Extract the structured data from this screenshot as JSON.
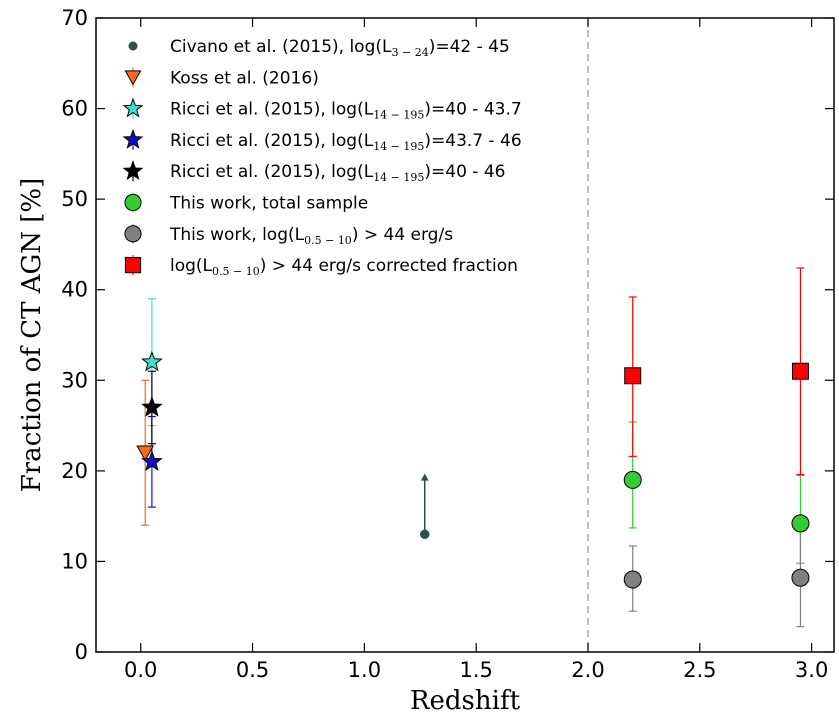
{
  "chart_data": {
    "type": "scatter",
    "title": "",
    "xlabel": "Redshift",
    "ylabel": "Fraction of CT AGN [%]",
    "xlim": [
      -0.2,
      3.1
    ],
    "ylim": [
      0,
      70
    ],
    "xticks": [
      "0.0",
      "0.5",
      "1.0",
      "1.5",
      "2.0",
      "2.5",
      "3.0"
    ],
    "yticks": [
      "0",
      "10",
      "20",
      "30",
      "40",
      "50",
      "60",
      "70"
    ],
    "grid": false,
    "legend_position": "top-left",
    "reference_line": {
      "x": 2.0,
      "style": "dashed",
      "color": "#aaaaaa"
    },
    "series": [
      {
        "name": "Civano et al. (2015), log(L3-24)=42 - 45",
        "label_prefix": "Civano et al. (2015), log(L",
        "label_sub": "3 − 24",
        "label_suffix": ")=42 - 45",
        "marker": "circle-small",
        "color": "#2f4f4f",
        "points": [
          {
            "x": 1.27,
            "y": 13,
            "lower_limit": true,
            "arrow_to": 19.7
          }
        ]
      },
      {
        "name": "Koss et al. (2016)",
        "label_prefix": "Koss et al. (2016)",
        "label_sub": "",
        "label_suffix": "",
        "marker": "triangle-down",
        "color": "#ff6a1a",
        "points": [
          {
            "x": 0.02,
            "y": 22,
            "yerr_low": 14,
            "yerr_high": 30
          }
        ]
      },
      {
        "name": "Ricci et al. (2015), log(L14-195)=40 - 43.7",
        "label_prefix": "Ricci et al. (2015), log(L",
        "label_sub": "14 − 195",
        "label_suffix": ")=40 - 43.7",
        "marker": "star",
        "color": "#40e0d0",
        "points": [
          {
            "x": 0.05,
            "y": 32,
            "yerr_low": 25,
            "yerr_high": 39
          }
        ]
      },
      {
        "name": "Ricci et al. (2015), log(L14-195)=43.7 - 46",
        "label_prefix": "Ricci et al. (2015), log(L",
        "label_sub": "14 − 195",
        "label_suffix": ")=43.7 - 46",
        "marker": "star",
        "color": "#1010cc",
        "points": [
          {
            "x": 0.05,
            "y": 21,
            "yerr_low": 16,
            "yerr_high": 26
          }
        ]
      },
      {
        "name": "Ricci et al. (2015), log(L14-195)=40 - 46",
        "label_prefix": "Ricci et al. (2015), log(L",
        "label_sub": "14 − 195",
        "label_suffix": ")=40 - 46",
        "marker": "star",
        "color": "#000000",
        "points": [
          {
            "x": 0.05,
            "y": 27,
            "yerr_low": 23,
            "yerr_high": 31
          }
        ]
      },
      {
        "name": "This work, total sample",
        "label_prefix": "This work, total sample",
        "label_sub": "",
        "label_suffix": "",
        "marker": "circle",
        "color": "#33cc33",
        "points": [
          {
            "x": 2.2,
            "y": 19,
            "yerr_low": 13.7,
            "yerr_high": 25.4
          },
          {
            "x": 2.95,
            "y": 14.2,
            "yerr_low": 9.8,
            "yerr_high": 19.5
          }
        ]
      },
      {
        "name": "This work, log(L0.5-10) > 44 erg/s",
        "label_prefix": "This work, log(L",
        "label_sub": "0.5 − 10",
        "label_suffix": ") > 44 erg/s",
        "marker": "circle",
        "color": "#808080",
        "points": [
          {
            "x": 2.2,
            "y": 8,
            "yerr_low": 4.5,
            "yerr_high": 11.7
          },
          {
            "x": 2.95,
            "y": 8.2,
            "yerr_low": 2.8,
            "yerr_high": 13.4
          }
        ]
      },
      {
        "name": "log(L0.5-10) > 44 erg/s corrected fraction",
        "label_prefix": "log(L",
        "label_sub": "0.5 − 10",
        "label_suffix": ") > 44 erg/s corrected fraction",
        "marker": "square",
        "color": "#ff0000",
        "points": [
          {
            "x": 2.2,
            "y": 30.5,
            "yerr_low": 21.6,
            "yerr_high": 39.2
          },
          {
            "x": 2.95,
            "y": 31,
            "yerr_low": 19.6,
            "yerr_high": 42.4
          }
        ]
      }
    ]
  }
}
